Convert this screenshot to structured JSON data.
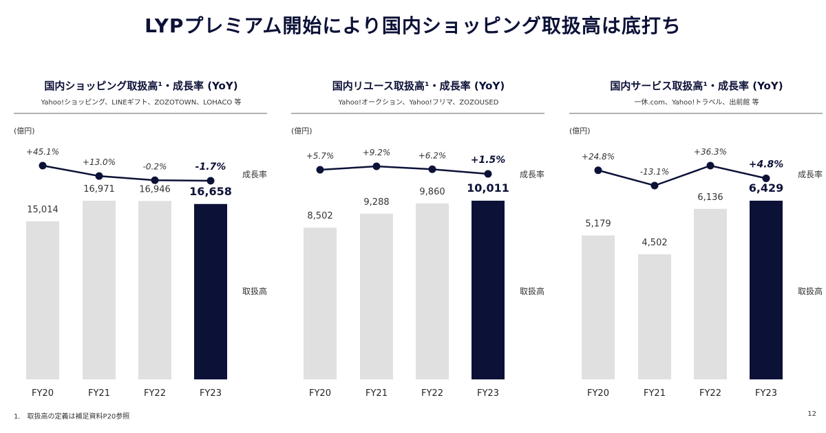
{
  "title": "LYPプレミアム開始により国内ショッピング取扱高は底打ち",
  "footnote": "1.　取扱高の定義は補足資料P20参照",
  "page_number": "12",
  "colors": {
    "highlight": "#0c1137",
    "bar": "#e0e0e0",
    "line": "#0c1137"
  },
  "chart_data": [
    {
      "type": "bar+line",
      "title": "国内ショッピング取扱高¹・成長率 (YoY)",
      "subtitle": "Yahoo!ショッピング、LINEギフト、ZOZOTOWN、LOHACO 等",
      "unit": "(億円)",
      "bar_label": "取扱高",
      "line_label": "成長率",
      "categories": [
        "FY20",
        "FY21",
        "FY22",
        "FY23"
      ],
      "values": [
        15014,
        16971,
        16946,
        16658
      ],
      "value_labels": [
        "15,014",
        "16,971",
        "16,946",
        "16,658"
      ],
      "growth": [
        45.1,
        13.0,
        -0.2,
        -1.7
      ],
      "growth_labels": [
        "+45.1%",
        "+13.0%",
        "-0.2%",
        "-1.7%"
      ],
      "highlight_index": 3
    },
    {
      "type": "bar+line",
      "title": "国内リユース取扱高¹・成長率 (YoY)",
      "subtitle": "Yahoo!オークション、Yahoo!フリマ、ZOZOUSED",
      "unit": "(億円)",
      "bar_label": "取扱高",
      "line_label": "成長率",
      "categories": [
        "FY20",
        "FY21",
        "FY22",
        "FY23"
      ],
      "values": [
        8502,
        9288,
        9860,
        10011
      ],
      "value_labels": [
        "8,502",
        "9,288",
        "9,860",
        "10,011"
      ],
      "growth": [
        5.7,
        9.2,
        6.2,
        1.5
      ],
      "growth_labels": [
        "+5.7%",
        "+9.2%",
        "+6.2%",
        "+1.5%"
      ],
      "highlight_index": 3
    },
    {
      "type": "bar+line",
      "title": "国内サービス取扱高¹・成長率 (YoY)",
      "subtitle": "一休.com、Yahoo!トラベル、出前館 等",
      "unit": "(億円)",
      "bar_label": "取扱高",
      "line_label": "成長率",
      "categories": [
        "FY20",
        "FY21",
        "FY22",
        "FY23"
      ],
      "values": [
        5179,
        4502,
        6136,
        6429
      ],
      "value_labels": [
        "5,179",
        "4,502",
        "6,136",
        "6,429"
      ],
      "growth": [
        24.8,
        -13.1,
        36.3,
        4.8
      ],
      "growth_labels": [
        "+24.8%",
        "-13.1%",
        "+36.3%",
        "+4.8%"
      ],
      "highlight_index": 3
    }
  ]
}
